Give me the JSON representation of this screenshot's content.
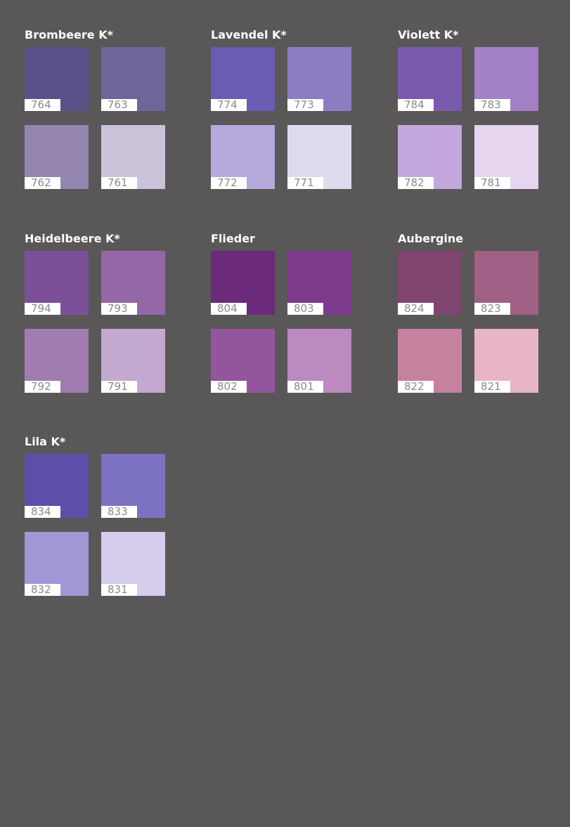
{
  "groups": [
    {
      "title": "Brombeere K*",
      "swatches": [
        {
          "code": "764",
          "color": "#5b5189"
        },
        {
          "code": "763",
          "color": "#6e6598"
        },
        {
          "code": "762",
          "color": "#9385b0"
        },
        {
          "code": "761",
          "color": "#cbc3da"
        }
      ]
    },
    {
      "title": "Lavendel K*",
      "swatches": [
        {
          "code": "774",
          "color": "#6b5bb3"
        },
        {
          "code": "773",
          "color": "#8e7cc3"
        },
        {
          "code": "772",
          "color": "#b5a9dc"
        },
        {
          "code": "771",
          "color": "#dedbee"
        }
      ]
    },
    {
      "title": "Violett K*",
      "swatches": [
        {
          "code": "784",
          "color": "#7a5aae"
        },
        {
          "code": "783",
          "color": "#a480c6"
        },
        {
          "code": "782",
          "color": "#c4a7dc"
        },
        {
          "code": "781",
          "color": "#e5d5ee"
        }
      ]
    },
    {
      "title": "Heidelbeere K*",
      "swatches": [
        {
          "code": "794",
          "color": "#7c5099"
        },
        {
          "code": "793",
          "color": "#9468a6"
        },
        {
          "code": "792",
          "color": "#a07cb1"
        },
        {
          "code": "791",
          "color": "#c3a9d0"
        }
      ]
    },
    {
      "title": "Flieder",
      "swatches": [
        {
          "code": "804",
          "color": "#6c2a7c"
        },
        {
          "code": "803",
          "color": "#7e3a8c"
        },
        {
          "code": "802",
          "color": "#93569d"
        },
        {
          "code": "801",
          "color": "#bc89c0"
        }
      ]
    },
    {
      "title": "Aubergine",
      "swatches": [
        {
          "code": "824",
          "color": "#80456e"
        },
        {
          "code": "823",
          "color": "#a06085"
        },
        {
          "code": "822",
          "color": "#c4829f"
        },
        {
          "code": "821",
          "color": "#e8b5c5"
        }
      ]
    },
    {
      "title": "Lila K*",
      "swatches": [
        {
          "code": "834",
          "color": "#5b4faa"
        },
        {
          "code": "833",
          "color": "#7c72c2"
        },
        {
          "code": "832",
          "color": "#a097d6"
        },
        {
          "code": "831",
          "color": "#d6ccec"
        }
      ]
    }
  ]
}
